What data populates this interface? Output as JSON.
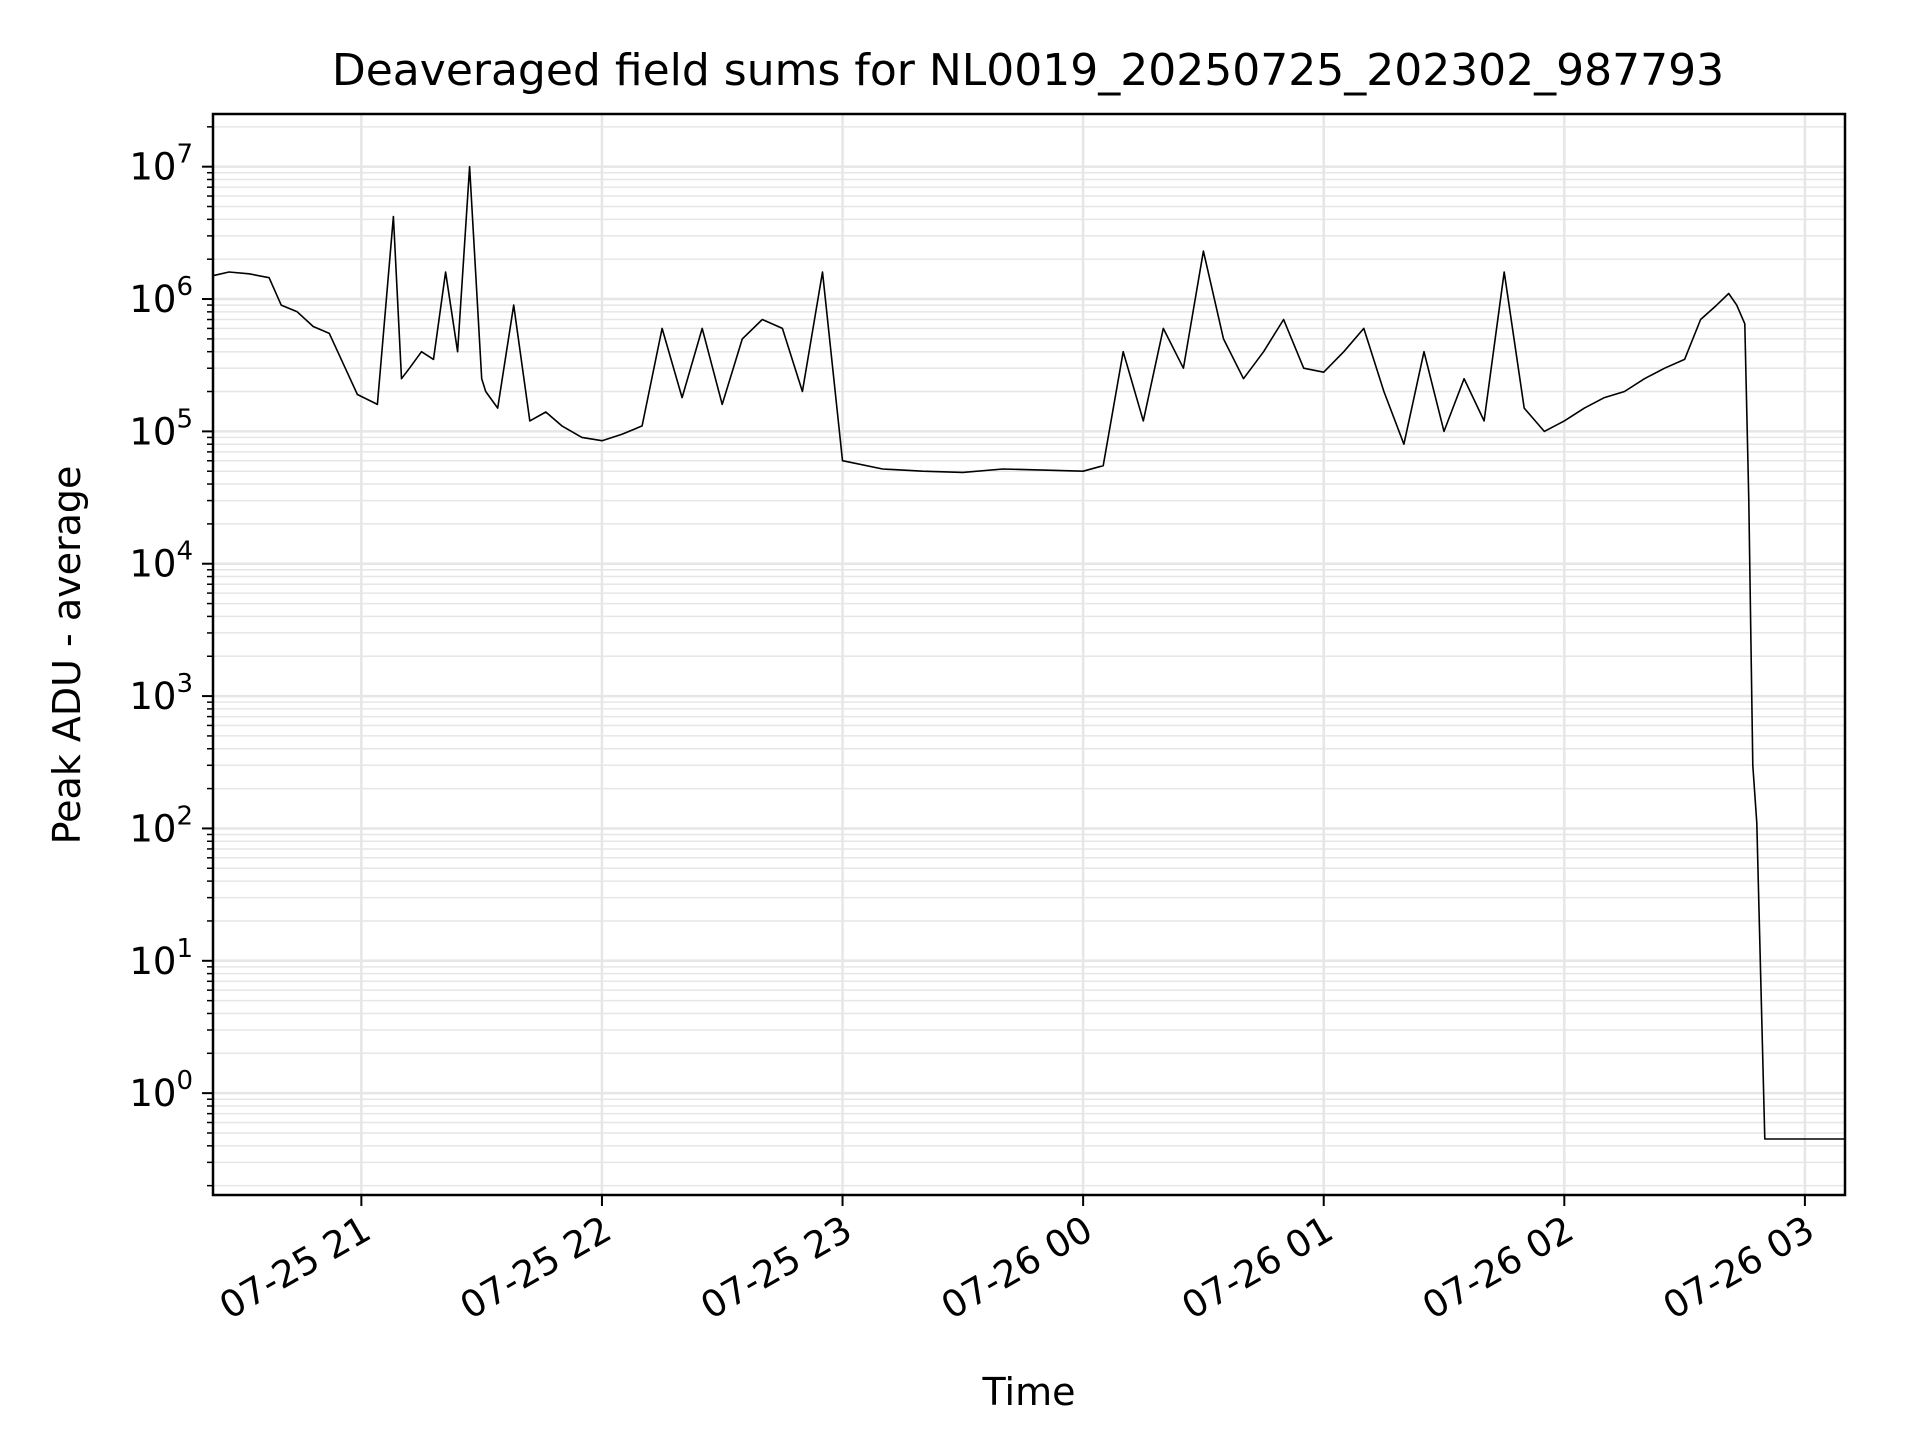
{
  "chart_data": {
    "type": "line",
    "title": "Deaveraged field sums for NL0019_20250725_202302_987793",
    "xlabel": "Time",
    "ylabel": "Peak ADU - average",
    "x_scale": "time",
    "y_scale": "log",
    "xlim": [
      "2025-07-25 20:23",
      "2025-07-26 03:10"
    ],
    "ylim": [
      0.17,
      25000000
    ],
    "grid": true,
    "legend": "none",
    "line_color": "#000000",
    "x_ticks": [
      {
        "t": "2025-07-25 21:00",
        "label": "07-25 21"
      },
      {
        "t": "2025-07-25 22:00",
        "label": "07-25 22"
      },
      {
        "t": "2025-07-25 23:00",
        "label": "07-25 23"
      },
      {
        "t": "2025-07-26 00:00",
        "label": "07-26 00"
      },
      {
        "t": "2025-07-26 01:00",
        "label": "07-26 01"
      },
      {
        "t": "2025-07-26 02:00",
        "label": "07-26 02"
      },
      {
        "t": "2025-07-26 03:00",
        "label": "07-26 03"
      }
    ],
    "y_ticks": [
      {
        "value": 1,
        "base": "10",
        "exp": "0"
      },
      {
        "value": 10,
        "base": "10",
        "exp": "1"
      },
      {
        "value": 100,
        "base": "10",
        "exp": "2"
      },
      {
        "value": 1000,
        "base": "10",
        "exp": "3"
      },
      {
        "value": 10000,
        "base": "10",
        "exp": "4"
      },
      {
        "value": 100000,
        "base": "10",
        "exp": "5"
      },
      {
        "value": 1000000,
        "base": "10",
        "exp": "6"
      },
      {
        "value": 10000000,
        "base": "10",
        "exp": "7"
      }
    ],
    "series": [
      {
        "x": [
          "2025-07-25 20:23",
          "2025-07-25 20:27",
          "2025-07-25 20:32",
          "2025-07-25 20:37",
          "2025-07-25 20:40",
          "2025-07-25 20:44",
          "2025-07-25 20:48",
          "2025-07-25 20:52",
          "2025-07-25 20:56",
          "2025-07-25 20:59",
          "2025-07-25 21:04",
          "2025-07-25 21:08",
          "2025-07-25 21:10",
          "2025-07-25 21:12",
          "2025-07-25 21:15",
          "2025-07-25 21:18",
          "2025-07-25 21:21",
          "2025-07-25 21:24",
          "2025-07-25 21:27",
          "2025-07-25 21:30",
          "2025-07-25 21:31",
          "2025-07-25 21:34",
          "2025-07-25 21:38",
          "2025-07-25 21:42",
          "2025-07-25 21:46",
          "2025-07-25 21:50",
          "2025-07-25 21:55",
          "2025-07-25 22:00",
          "2025-07-25 22:05",
          "2025-07-25 22:10",
          "2025-07-25 22:15",
          "2025-07-25 22:20",
          "2025-07-25 22:25",
          "2025-07-25 22:30",
          "2025-07-25 22:35",
          "2025-07-25 22:40",
          "2025-07-25 22:45",
          "2025-07-25 22:50",
          "2025-07-25 22:55",
          "2025-07-25 23:00",
          "2025-07-25 23:10",
          "2025-07-25 23:20",
          "2025-07-25 23:30",
          "2025-07-25 23:40",
          "2025-07-25 23:50",
          "2025-07-26 00:00",
          "2025-07-26 00:05",
          "2025-07-26 00:10",
          "2025-07-26 00:15",
          "2025-07-26 00:20",
          "2025-07-26 00:25",
          "2025-07-26 00:30",
          "2025-07-26 00:35",
          "2025-07-26 00:40",
          "2025-07-26 00:45",
          "2025-07-26 00:50",
          "2025-07-26 00:55",
          "2025-07-26 01:00",
          "2025-07-26 01:05",
          "2025-07-26 01:10",
          "2025-07-26 01:15",
          "2025-07-26 01:20",
          "2025-07-26 01:25",
          "2025-07-26 01:30",
          "2025-07-26 01:35",
          "2025-07-26 01:40",
          "2025-07-26 01:45",
          "2025-07-26 01:50",
          "2025-07-26 01:55",
          "2025-07-26 02:00",
          "2025-07-26 02:05",
          "2025-07-26 02:10",
          "2025-07-26 02:15",
          "2025-07-26 02:20",
          "2025-07-26 02:25",
          "2025-07-26 02:30",
          "2025-07-26 02:34",
          "2025-07-26 02:38",
          "2025-07-26 02:41",
          "2025-07-26 02:43",
          "2025-07-26 02:45",
          "2025-07-26 02:46",
          "2025-07-26 02:47",
          "2025-07-26 02:48",
          "2025-07-26 02:50",
          "2025-07-26 02:55",
          "2025-07-26 03:00",
          "2025-07-26 03:05",
          "2025-07-26 03:10"
        ],
        "y": [
          1500000,
          1600000,
          1550000,
          1450000,
          900000,
          800000,
          620000,
          550000,
          300000,
          190000,
          160000,
          4200000,
          250000,
          300000,
          400000,
          350000,
          1600000,
          400000,
          10000000,
          250000,
          200000,
          150000,
          900000,
          120000,
          140000,
          110000,
          90000,
          85000,
          95000,
          110000,
          600000,
          180000,
          600000,
          160000,
          500000,
          700000,
          600000,
          200000,
          1600000,
          60000,
          52000,
          50000,
          49000,
          52000,
          51000,
          50000,
          55000,
          400000,
          120000,
          600000,
          300000,
          2300000,
          500000,
          250000,
          400000,
          700000,
          300000,
          280000,
          400000,
          600000,
          200000,
          80000,
          400000,
          100000,
          250000,
          120000,
          1600000,
          150000,
          100000,
          120000,
          150000,
          180000,
          200000,
          250000,
          300000,
          350000,
          700000,
          900000,
          1100000,
          900000,
          650000,
          30000,
          300,
          110,
          0.45,
          0.45,
          0.45,
          0.45,
          0.45
        ]
      }
    ]
  }
}
